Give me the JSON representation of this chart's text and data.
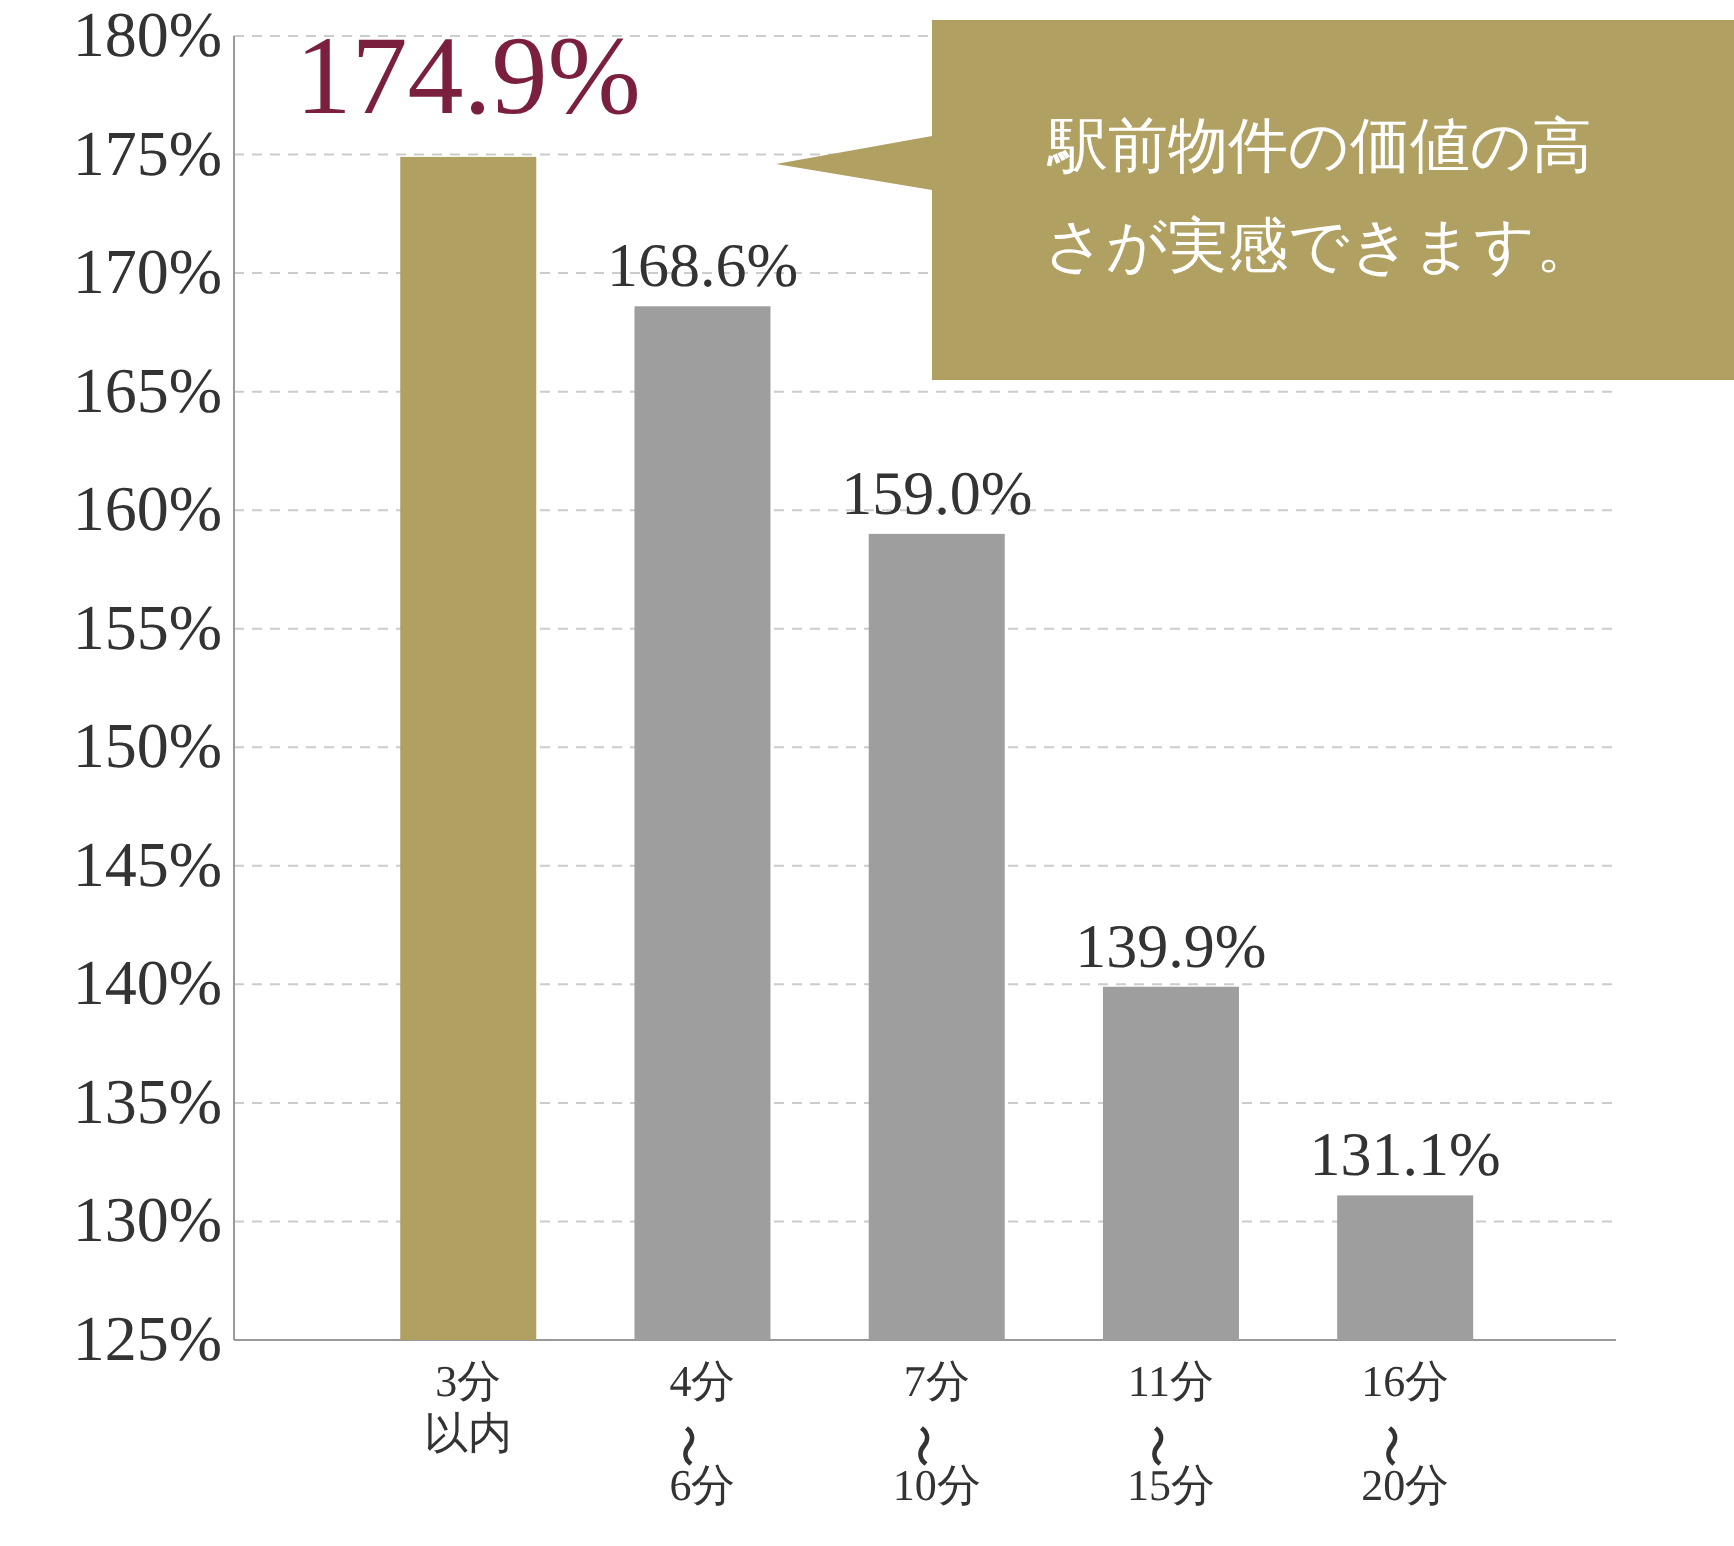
{
  "chart_data": {
    "type": "bar",
    "categories": [
      "3分以内",
      "4分〜6分",
      "7分〜10分",
      "11分〜15分",
      "16分〜20分"
    ],
    "values": [
      174.9,
      168.6,
      159.0,
      139.9,
      131.1
    ],
    "colors": [
      "#b0a062",
      "#9e9e9e",
      "#9e9e9e",
      "#9e9e9e",
      "#9e9e9e"
    ],
    "value_labels": [
      "174.9%",
      "168.6%",
      "159.0%",
      "139.9%",
      "131.1%"
    ],
    "ylim": [
      125,
      180
    ],
    "yticks": [
      {
        "value": 125,
        "label": "125%"
      },
      {
        "value": 130,
        "label": "130%"
      },
      {
        "value": 135,
        "label": "135%"
      },
      {
        "value": 140,
        "label": "140%"
      },
      {
        "value": 145,
        "label": "145%"
      },
      {
        "value": 150,
        "label": "150%"
      },
      {
        "value": 155,
        "label": "155%"
      },
      {
        "value": 160,
        "label": "160%"
      },
      {
        "value": 165,
        "label": "165%"
      },
      {
        "value": 170,
        "label": "170%"
      },
      {
        "value": 175,
        "label": "175%"
      },
      {
        "value": 180,
        "label": "180%"
      }
    ],
    "grid": "y",
    "annotations": [
      "駅前物件の価値の高さが実感できます。"
    ]
  }
}
